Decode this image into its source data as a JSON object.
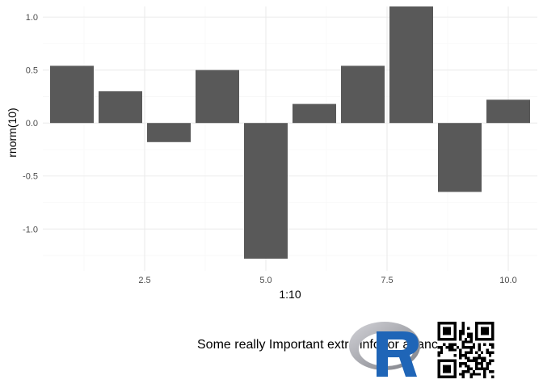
{
  "chart_data": {
    "type": "bar",
    "x": [
      1,
      2,
      3,
      4,
      5,
      6,
      7,
      8,
      9,
      10
    ],
    "values": [
      0.54,
      0.3,
      -0.18,
      0.5,
      -1.28,
      0.18,
      0.54,
      1.1,
      -0.65,
      0.22
    ],
    "xlabel": "1:10",
    "ylabel": "rnorm(10)",
    "xlim": [
      0.4,
      10.6
    ],
    "ylim": [
      -1.28,
      1.1
    ],
    "xticks": [
      2.5,
      5.0,
      7.5,
      10.0
    ],
    "xtick_labels": [
      "2.5",
      "5.0",
      "7.5",
      "10.0"
    ],
    "yticks": [
      -1.0,
      -0.5,
      0.0,
      0.5,
      1.0
    ],
    "ytick_labels": [
      "-1.0",
      "-0.5",
      "0.0",
      "0.5",
      "1.0"
    ],
    "bar_color": "#595959",
    "grid": true,
    "theme": "minimal"
  },
  "caption": {
    "text": "Some really Important extra info, or a fancy footer",
    "logo_icon": "r-logo-icon",
    "qr_icon": "qr-code-icon"
  }
}
